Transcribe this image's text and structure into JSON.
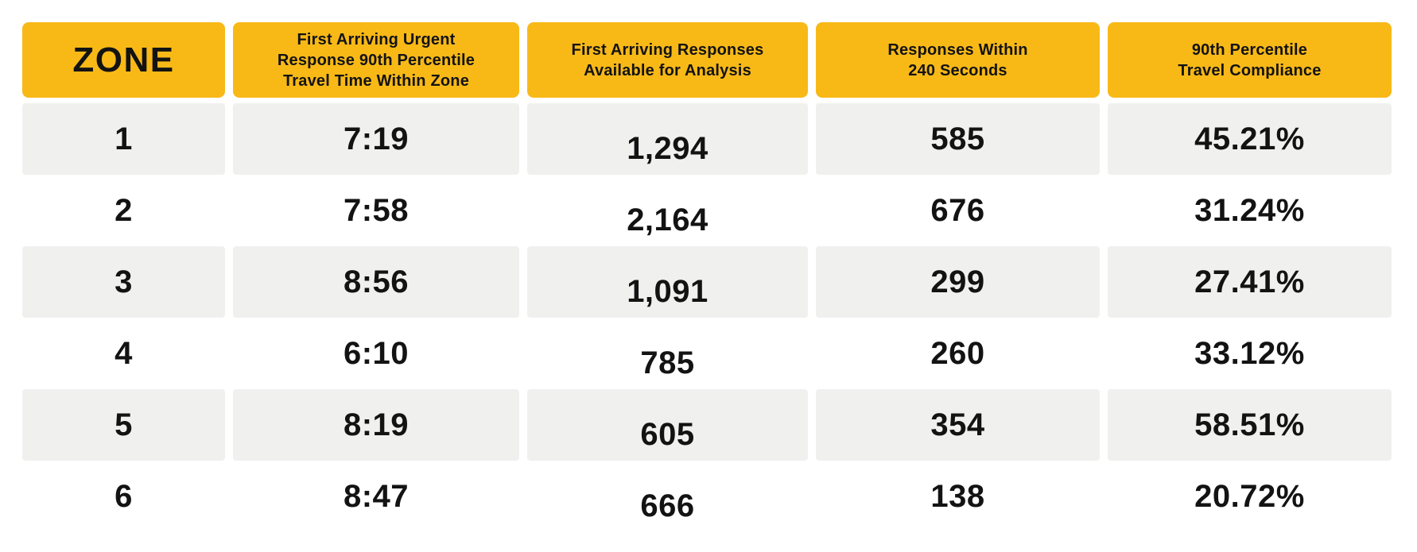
{
  "colors": {
    "header_bg": "#F8B917",
    "alt_row_bg": "#F0F1EF",
    "text": "#131313",
    "page_bg": "#FFFFFF"
  },
  "header": {
    "zone": "ZONE",
    "col2_lines": [
      "First Arriving Urgent",
      "Response 90th Percentile",
      "Travel Time Within Zone"
    ],
    "col3_lines": [
      "First Arriving Responses",
      "Available for Analysis"
    ],
    "col4_lines": [
      "Responses Within",
      "240 Seconds"
    ],
    "col5_lines": [
      "90th Percentile",
      "Travel Compliance"
    ]
  },
  "rows": [
    {
      "zone": "1",
      "travel_time": "7:19",
      "responses": "1,294",
      "within_240": "585",
      "compliance": "45.21%"
    },
    {
      "zone": "2",
      "travel_time": "7:58",
      "responses": "2,164",
      "within_240": "676",
      "compliance": "31.24%"
    },
    {
      "zone": "3",
      "travel_time": "8:56",
      "responses": "1,091",
      "within_240": "299",
      "compliance": "27.41%"
    },
    {
      "zone": "4",
      "travel_time": "6:10",
      "responses": "785",
      "within_240": "260",
      "compliance": "33.12%"
    },
    {
      "zone": "5",
      "travel_time": "8:19",
      "responses": "605",
      "within_240": "354",
      "compliance": "58.51%"
    },
    {
      "zone": "6",
      "travel_time": "8:47",
      "responses": "666",
      "within_240": "138",
      "compliance": "20.72%"
    }
  ],
  "chart_data": {
    "type": "table",
    "columns": [
      "ZONE",
      "First Arriving Urgent Response 90th Percentile Travel Time Within Zone",
      "First Arriving Responses Available for Analysis",
      "Responses Within 240 Seconds",
      "90th Percentile Travel Compliance"
    ],
    "rows": [
      [
        "1",
        "7:19",
        "1,294",
        "585",
        "45.21%"
      ],
      [
        "2",
        "7:58",
        "2,164",
        "676",
        "31.24%"
      ],
      [
        "3",
        "8:56",
        "1,091",
        "299",
        "27.41%"
      ],
      [
        "4",
        "6:10",
        "785",
        "260",
        "33.12%"
      ],
      [
        "5",
        "8:19",
        "605",
        "354",
        "58.51%"
      ],
      [
        "6",
        "8:47",
        "666",
        "138",
        "20.72%"
      ]
    ],
    "notes": "Zebra striping on rows 1, 3, 5 (light gray); yellow header band; no gridlines"
  }
}
